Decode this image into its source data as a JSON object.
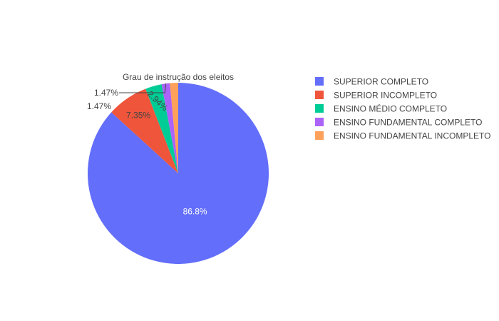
{
  "chart_data": {
    "type": "pie",
    "title": "Grau de instrução dos eleitos",
    "direction": "clockwise",
    "start": "top",
    "slices": [
      {
        "label": "SUPERIOR COMPLETO",
        "value": 86.8,
        "text": "86.8%",
        "color": "#636efa",
        "label_position": "inside",
        "text_color": "#ffffff"
      },
      {
        "label": "SUPERIOR INCOMPLETO",
        "value": 7.35,
        "text": "7.35%",
        "color": "#ef553b",
        "label_position": "inside",
        "text_color": "#444444"
      },
      {
        "label": "ENSINO MÉDIO COMPLETO",
        "value": 2.94,
        "text": "2.94%",
        "color": "#00cc96",
        "label_position": "inside-rotated",
        "text_color": "#444444"
      },
      {
        "label": "ENSINO FUNDAMENTAL COMPLETO",
        "value": 1.47,
        "text": "1.47%",
        "color": "#ab63fa",
        "label_position": "outside",
        "text_color": "#444444"
      },
      {
        "label": "ENSINO FUNDAMENTAL INCOMPLETO",
        "value": 1.47,
        "text": "1.47%",
        "color": "#ffa15a",
        "label_position": "outside",
        "text_color": "#444444"
      }
    ],
    "legend_position": "right"
  }
}
